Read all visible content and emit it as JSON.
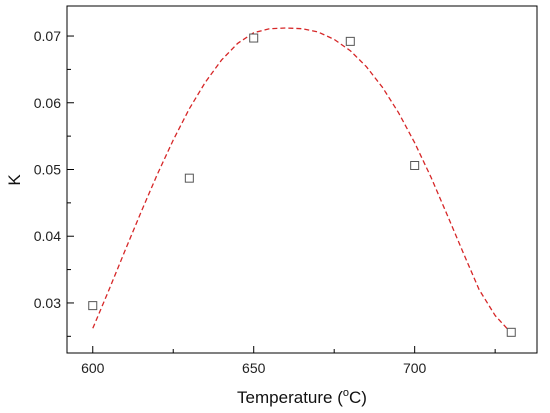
{
  "chart_data": {
    "type": "scatter",
    "xlabel": "Temperature (",
    "xlabel_sup": "o",
    "xlabel_unit": "C)",
    "ylabel": "K",
    "xlim": [
      592,
      738
    ],
    "ylim": [
      0.0225,
      0.0745
    ],
    "x_ticks": [
      600,
      650,
      700
    ],
    "x_tick_labels": [
      "600",
      "650",
      "700"
    ],
    "x_minor_ticks": [
      625,
      675,
      725
    ],
    "y_ticks": [
      0.03,
      0.04,
      0.05,
      0.06,
      0.07
    ],
    "y_tick_labels": [
      "0.03",
      "0.04",
      "0.05",
      "0.06",
      "0.07"
    ],
    "y_minor_ticks": [
      0.025,
      0.035,
      0.045,
      0.055,
      0.065
    ],
    "grid": false,
    "series": [
      {
        "marker": "open-square",
        "color": "#555555",
        "x": [
          600,
          630,
          650,
          680,
          700,
          730
        ],
        "y": [
          0.0296,
          0.0487,
          0.0697,
          0.0692,
          0.0506,
          0.0256
        ]
      }
    ],
    "fit": {
      "style": "dashed",
      "color": "#d62728",
      "x": [
        600,
        605,
        610,
        615,
        620,
        625,
        630,
        635,
        640,
        645,
        650,
        655,
        660,
        665,
        670,
        675,
        680,
        685,
        690,
        695,
        700,
        705,
        710,
        715,
        720,
        725,
        730
      ],
      "y": [
        0.0262,
        0.0319,
        0.0378,
        0.0436,
        0.0492,
        0.0544,
        0.0591,
        0.0631,
        0.0664,
        0.0689,
        0.0705,
        0.0711,
        0.0712,
        0.0711,
        0.0706,
        0.0695,
        0.0678,
        0.0654,
        0.0623,
        0.0585,
        0.054,
        0.0489,
        0.0433,
        0.0376,
        0.032,
        0.0281,
        0.0255
      ]
    }
  }
}
